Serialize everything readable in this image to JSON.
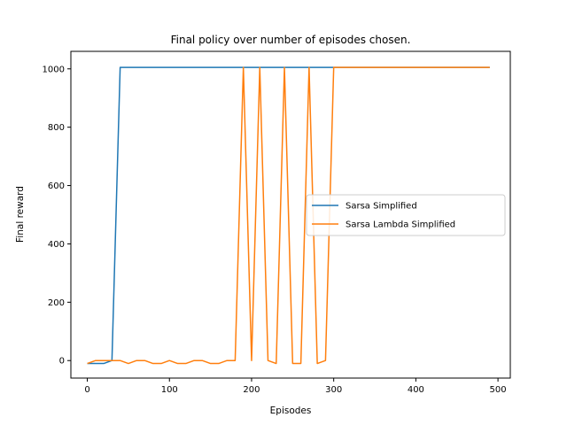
{
  "chart_data": {
    "type": "line",
    "title": "Final policy over number of episodes chosen.",
    "xlabel": "Episodes",
    "ylabel": "Final reward",
    "xlim": [
      -20,
      515
    ],
    "ylim": [
      -60,
      1060
    ],
    "xticks": [
      0,
      100,
      200,
      300,
      400,
      500
    ],
    "yticks": [
      0,
      200,
      400,
      600,
      800,
      1000
    ],
    "grid": false,
    "legend_position": "center-right",
    "x": [
      0,
      10,
      20,
      30,
      40,
      50,
      60,
      70,
      80,
      90,
      100,
      110,
      120,
      130,
      140,
      150,
      160,
      170,
      180,
      190,
      200,
      210,
      220,
      230,
      240,
      250,
      260,
      270,
      280,
      290,
      300,
      310,
      320,
      330,
      340,
      350,
      360,
      370,
      380,
      390,
      400,
      410,
      420,
      430,
      440,
      450,
      460,
      470,
      480,
      490
    ],
    "series": [
      {
        "name": "Sarsa Simplified",
        "color": "#1f77b4",
        "values": [
          -10,
          -10,
          -10,
          0,
          1005,
          1005,
          1005,
          1005,
          1005,
          1005,
          1005,
          1005,
          1005,
          1005,
          1005,
          1005,
          1005,
          1005,
          1005,
          1005,
          1005,
          1005,
          1005,
          1005,
          1005,
          1005,
          1005,
          1005,
          1005,
          1005,
          1005,
          1005,
          1005,
          1005,
          1005,
          1005,
          1005,
          1005,
          1005,
          1005,
          1005,
          1005,
          1005,
          1005,
          1005,
          1005,
          1005,
          1005,
          1005,
          1005
        ]
      },
      {
        "name": "Sarsa Lambda Simplified",
        "color": "#ff7f0e",
        "values": [
          -10,
          0,
          0,
          0,
          0,
          -10,
          0,
          0,
          -10,
          -10,
          0,
          -10,
          -10,
          0,
          0,
          -10,
          -10,
          0,
          0,
          1005,
          0,
          1005,
          0,
          -10,
          1005,
          -10,
          -10,
          1005,
          -10,
          0,
          1005,
          1005,
          1005,
          1005,
          1005,
          1005,
          1005,
          1005,
          1005,
          1005,
          1005,
          1005,
          1005,
          1005,
          1005,
          1005,
          1005,
          1005,
          1005,
          1005
        ]
      }
    ]
  }
}
